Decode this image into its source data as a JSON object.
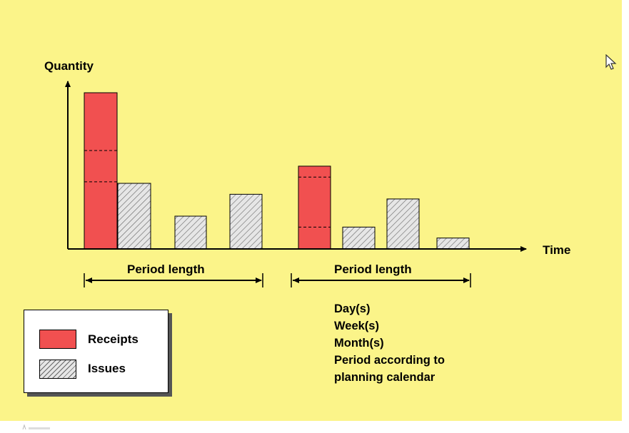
{
  "diagram": {
    "y_axis_label": "Quantity",
    "x_axis_label": "Time",
    "period_label_1": "Period length",
    "period_label_2": "Period length",
    "period_options": [
      "Day(s)",
      "Week(s)",
      "Month(s)",
      "Period according to",
      "planning calendar"
    ]
  },
  "legend": {
    "receipts": "Receipts",
    "issues": "Issues"
  },
  "chart_data": {
    "type": "bar",
    "ylim": [
      0,
      100
    ],
    "bars": [
      {
        "name": "receipt-bar-1",
        "kind": "receipt",
        "value": 100,
        "dashes": [
          63,
          43
        ]
      },
      {
        "name": "issue-bar-1",
        "kind": "issue",
        "value": 42
      },
      {
        "name": "issue-bar-2",
        "kind": "issue",
        "value": 21
      },
      {
        "name": "issue-bar-3",
        "kind": "issue",
        "value": 35
      },
      {
        "name": "receipt-bar-2",
        "kind": "receipt",
        "value": 53,
        "dashes": [
          46,
          14
        ]
      },
      {
        "name": "issue-bar-4",
        "kind": "issue",
        "value": 14
      },
      {
        "name": "issue-bar-5",
        "kind": "issue",
        "value": 32
      },
      {
        "name": "issue-bar-6",
        "kind": "issue",
        "value": 7
      }
    ],
    "colors": {
      "background": "#fbf489",
      "receipt": "#f15050",
      "issue_fill": "#e6e6e6",
      "issue_hatch": "#666666"
    }
  }
}
